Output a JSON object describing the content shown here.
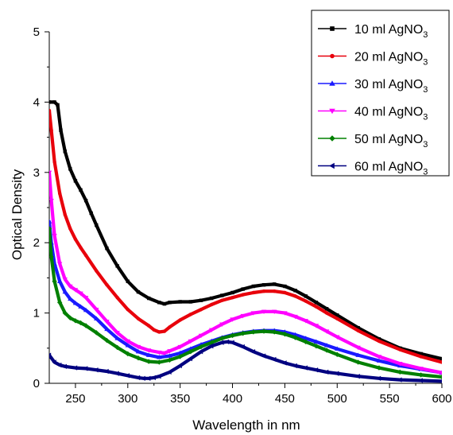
{
  "chart_data": {
    "type": "line",
    "title": "",
    "xlabel": "Wavelength in nm",
    "ylabel": "Optical Density",
    "xlim": [
      225,
      600
    ],
    "ylim": [
      0,
      5
    ],
    "xticks": [
      250,
      300,
      350,
      400,
      450,
      500,
      550,
      600
    ],
    "yticks": [
      0,
      1,
      2,
      3,
      4,
      5
    ],
    "grid": false,
    "legend_position": "top-right",
    "series": [
      {
        "name": "10 ml AgNO3",
        "legend_prefix": "10 ml AgNO",
        "legend_sub": "3",
        "color": "#000000",
        "marker": "square",
        "x": [
          225,
          230,
          233,
          236,
          240,
          245,
          250,
          255,
          260,
          265,
          270,
          280,
          290,
          300,
          310,
          320,
          330,
          335,
          340,
          350,
          360,
          370,
          380,
          390,
          400,
          410,
          420,
          430,
          440,
          450,
          460,
          470,
          480,
          490,
          500,
          520,
          540,
          560,
          580,
          600
        ],
        "y": [
          4.0,
          4.0,
          3.96,
          3.6,
          3.3,
          3.05,
          2.88,
          2.75,
          2.6,
          2.42,
          2.25,
          1.92,
          1.67,
          1.45,
          1.3,
          1.21,
          1.15,
          1.13,
          1.15,
          1.16,
          1.16,
          1.18,
          1.21,
          1.25,
          1.29,
          1.34,
          1.38,
          1.4,
          1.41,
          1.38,
          1.32,
          1.24,
          1.15,
          1.06,
          0.97,
          0.79,
          0.63,
          0.5,
          0.42,
          0.35
        ]
      },
      {
        "name": "20 ml AgNO3",
        "legend_prefix": "20 ml AgNO",
        "legend_sub": "3",
        "color": "#e8000b",
        "marker": "circle",
        "x": [
          225,
          227,
          230,
          235,
          240,
          245,
          250,
          255,
          260,
          270,
          280,
          290,
          300,
          310,
          320,
          325,
          330,
          335,
          340,
          350,
          360,
          370,
          380,
          390,
          400,
          410,
          420,
          430,
          440,
          450,
          460,
          470,
          480,
          490,
          500,
          520,
          540,
          560,
          580,
          600
        ],
        "y": [
          3.88,
          3.6,
          3.15,
          2.7,
          2.4,
          2.2,
          2.05,
          1.93,
          1.82,
          1.6,
          1.4,
          1.22,
          1.05,
          0.92,
          0.82,
          0.76,
          0.73,
          0.74,
          0.8,
          0.9,
          0.98,
          1.05,
          1.12,
          1.18,
          1.22,
          1.26,
          1.29,
          1.31,
          1.31,
          1.29,
          1.24,
          1.17,
          1.09,
          1.0,
          0.92,
          0.75,
          0.6,
          0.48,
          0.38,
          0.3
        ]
      },
      {
        "name": "30 ml AgNO3",
        "legend_prefix": "30 ml AgNO",
        "legend_sub": "3",
        "color": "#1a1aff",
        "marker": "triangle-up",
        "x": [
          225,
          227,
          230,
          235,
          240,
          245,
          250,
          255,
          260,
          270,
          280,
          290,
          300,
          310,
          320,
          330,
          340,
          350,
          360,
          370,
          380,
          390,
          400,
          410,
          420,
          430,
          440,
          450,
          460,
          470,
          480,
          490,
          500,
          520,
          540,
          560,
          580,
          600
        ],
        "y": [
          2.3,
          2.0,
          1.7,
          1.45,
          1.3,
          1.2,
          1.14,
          1.09,
          1.04,
          0.92,
          0.77,
          0.64,
          0.54,
          0.45,
          0.4,
          0.37,
          0.39,
          0.43,
          0.49,
          0.55,
          0.6,
          0.65,
          0.69,
          0.72,
          0.74,
          0.75,
          0.75,
          0.73,
          0.69,
          0.64,
          0.59,
          0.54,
          0.49,
          0.4,
          0.32,
          0.25,
          0.2,
          0.15
        ]
      },
      {
        "name": "40 ml AgNO3",
        "legend_prefix": "40 ml AgNO",
        "legend_sub": "3",
        "color": "#ff00ff",
        "marker": "triangle-down",
        "x": [
          225,
          227,
          230,
          235,
          240,
          245,
          250,
          255,
          260,
          270,
          280,
          290,
          300,
          310,
          320,
          330,
          335,
          340,
          350,
          360,
          370,
          380,
          390,
          400,
          410,
          420,
          430,
          440,
          450,
          460,
          470,
          480,
          490,
          500,
          520,
          540,
          560,
          580,
          600
        ],
        "y": [
          3.0,
          2.6,
          2.1,
          1.7,
          1.48,
          1.38,
          1.33,
          1.28,
          1.22,
          1.05,
          0.88,
          0.72,
          0.6,
          0.52,
          0.47,
          0.44,
          0.43,
          0.46,
          0.52,
          0.6,
          0.68,
          0.76,
          0.84,
          0.91,
          0.96,
          1.0,
          1.02,
          1.02,
          1.0,
          0.95,
          0.89,
          0.82,
          0.74,
          0.66,
          0.51,
          0.38,
          0.28,
          0.21,
          0.15
        ]
      },
      {
        "name": "50 ml AgNO3",
        "legend_prefix": "50 ml AgNO",
        "legend_sub": "3",
        "color": "#008000",
        "marker": "diamond",
        "x": [
          225,
          227,
          230,
          235,
          240,
          245,
          250,
          255,
          260,
          270,
          280,
          290,
          300,
          310,
          320,
          330,
          340,
          350,
          360,
          370,
          380,
          390,
          400,
          410,
          420,
          430,
          440,
          450,
          460,
          470,
          480,
          490,
          500,
          520,
          540,
          560,
          580,
          600
        ],
        "y": [
          2.2,
          1.8,
          1.45,
          1.15,
          1.0,
          0.93,
          0.89,
          0.86,
          0.82,
          0.72,
          0.61,
          0.51,
          0.42,
          0.36,
          0.31,
          0.3,
          0.33,
          0.38,
          0.45,
          0.52,
          0.58,
          0.64,
          0.68,
          0.71,
          0.73,
          0.74,
          0.73,
          0.7,
          0.65,
          0.59,
          0.53,
          0.47,
          0.41,
          0.3,
          0.22,
          0.16,
          0.12,
          0.09
        ]
      },
      {
        "name": "60 ml AgNO3",
        "legend_prefix": "60 ml AgNO",
        "legend_sub": "3",
        "color": "#000080",
        "marker": "triangle-left",
        "x": [
          225,
          230,
          235,
          240,
          250,
          260,
          270,
          280,
          290,
          300,
          310,
          315,
          320,
          325,
          330,
          340,
          350,
          360,
          370,
          380,
          390,
          395,
          400,
          410,
          420,
          430,
          440,
          450,
          460,
          470,
          480,
          490,
          500,
          520,
          540,
          560,
          580,
          600
        ],
        "y": [
          0.4,
          0.3,
          0.26,
          0.24,
          0.22,
          0.21,
          0.19,
          0.17,
          0.14,
          0.11,
          0.08,
          0.07,
          0.07,
          0.08,
          0.1,
          0.16,
          0.25,
          0.35,
          0.45,
          0.53,
          0.58,
          0.59,
          0.58,
          0.52,
          0.45,
          0.39,
          0.34,
          0.29,
          0.25,
          0.22,
          0.19,
          0.16,
          0.14,
          0.1,
          0.07,
          0.05,
          0.04,
          0.03
        ]
      }
    ]
  }
}
